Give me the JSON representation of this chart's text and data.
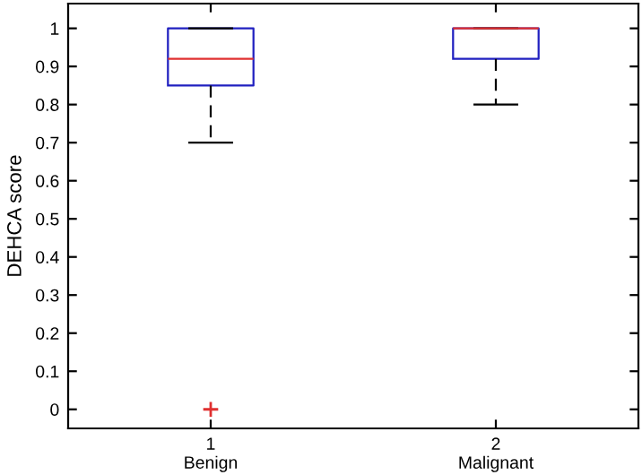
{
  "chart_data": {
    "type": "box",
    "ylabel": "DEHCA score",
    "categories": [
      "1\nBenign",
      "2\nMalignant"
    ],
    "series": [
      {
        "color": "#2020c0",
        "boxes": [
          {
            "low": 0.7,
            "q1": 0.85,
            "median": 0.92,
            "q3": 1.0,
            "high": 1.0,
            "outliers": [
              0
            ]
          },
          {
            "low": 0.8,
            "q1": 0.92,
            "median": 1.0,
            "q3": 1.0,
            "high": 1.0
          }
        ]
      }
    ],
    "ylim": [
      -0.05,
      1.065
    ],
    "yticks": [
      0,
      0.1,
      0.2,
      0.3,
      0.4,
      0.5,
      0.6,
      0.7,
      0.8,
      0.9,
      1
    ],
    "grid": false
  }
}
